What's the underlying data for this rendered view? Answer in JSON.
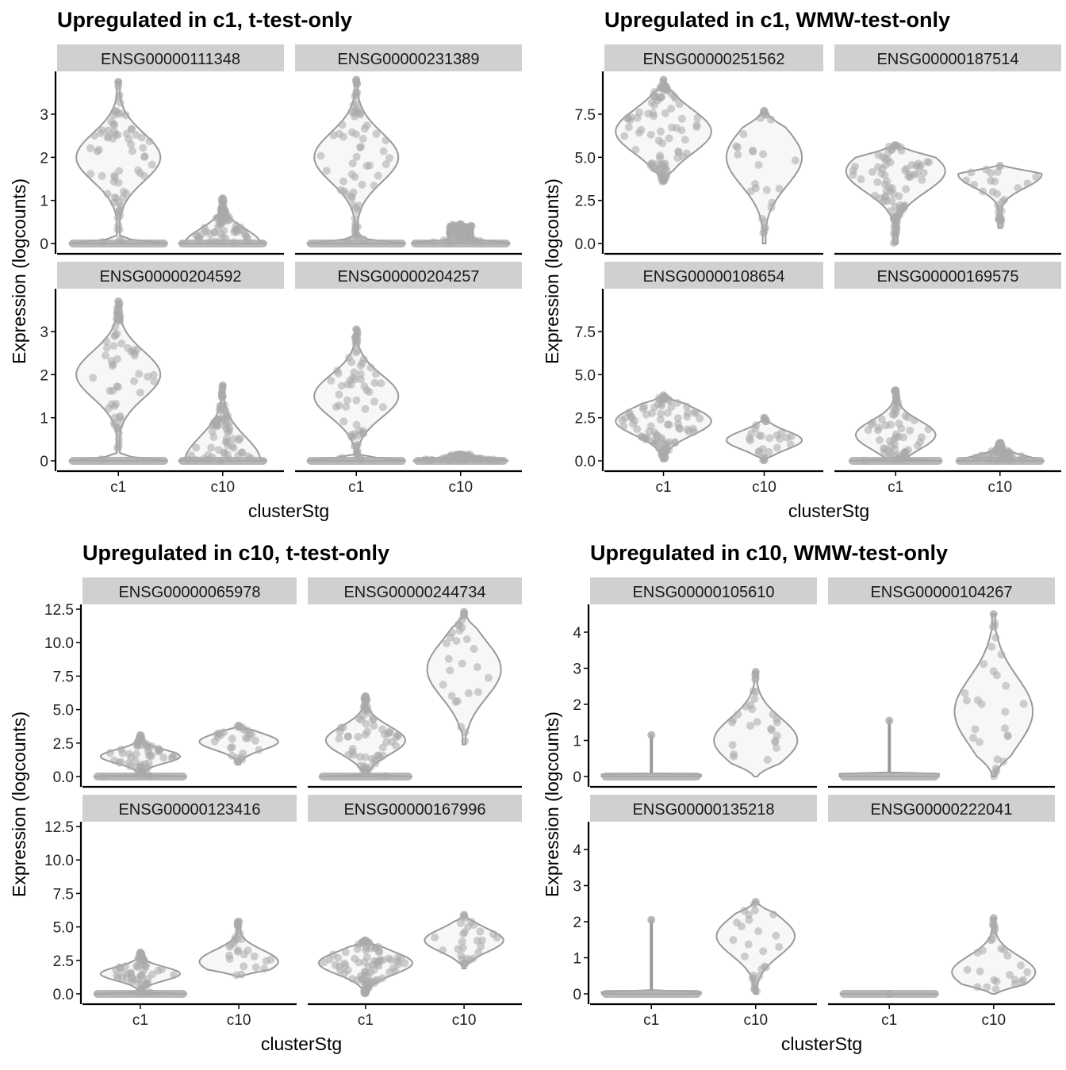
{
  "chart_data": [
    {
      "type": "violin",
      "title": "Upregulated in c1, t-test-only",
      "xlabel": "clusterStg",
      "ylabel": "Expression (logcounts)",
      "categories": [
        "c1",
        "c10"
      ],
      "ylim": [
        -0.15,
        4.0
      ],
      "yticks": [
        "0",
        "1",
        "2",
        "3"
      ],
      "ytick_values": [
        0,
        1,
        2,
        3
      ],
      "facets": [
        {
          "gene": "ENSG00000111348",
          "groups": [
            {
              "cluster": "c1",
              "max": 3.75,
              "zero_heavy": true,
              "mode": 2.0,
              "width": 0.95
            },
            {
              "cluster": "c10",
              "max": 1.05,
              "zero_heavy": true,
              "mode": 0.0,
              "width": 0.85
            }
          ]
        },
        {
          "gene": "ENSG00000231389",
          "groups": [
            {
              "cluster": "c1",
              "max": 3.8,
              "zero_heavy": true,
              "mode": 2.0,
              "width": 0.95
            },
            {
              "cluster": "c10",
              "max": 0.45,
              "zero_heavy": true,
              "mode": 0.0,
              "width": 0.95
            }
          ]
        },
        {
          "gene": "ENSG00000204592",
          "groups": [
            {
              "cluster": "c1",
              "max": 3.7,
              "zero_heavy": true,
              "mode": 2.0,
              "width": 0.95
            },
            {
              "cluster": "c10",
              "max": 1.75,
              "zero_heavy": true,
              "mode": 0.0,
              "width": 0.85
            }
          ]
        },
        {
          "gene": "ENSG00000204257",
          "groups": [
            {
              "cluster": "c1",
              "max": 3.05,
              "zero_heavy": true,
              "mode": 1.5,
              "width": 0.95
            },
            {
              "cluster": "c10",
              "max": 0.15,
              "zero_heavy": true,
              "mode": 0.0,
              "width": 0.9
            }
          ]
        }
      ]
    },
    {
      "type": "violin",
      "title": "Upregulated in c1, WMW-test-only",
      "xlabel": "clusterStg",
      "ylabel": "Expression (logcounts)",
      "categories": [
        "c1",
        "c10"
      ],
      "ylim": [
        -0.35,
        10.0
      ],
      "yticks": [
        "0.0",
        "2.5",
        "5.0",
        "7.5"
      ],
      "ytick_values": [
        0,
        2.5,
        5,
        7.5
      ],
      "facets": [
        {
          "gene": "ENSG00000251562",
          "groups": [
            {
              "cluster": "c1",
              "min": 3.5,
              "max": 9.5,
              "mode": 6.5,
              "width": 0.95
            },
            {
              "cluster": "c10",
              "min": 0.0,
              "max": 7.7,
              "mode": 5.0,
              "width": 0.75
            }
          ]
        },
        {
          "gene": "ENSG00000187514",
          "groups": [
            {
              "cluster": "c1",
              "min": 0.0,
              "max": 5.7,
              "mode": 4.2,
              "width": 0.95
            },
            {
              "cluster": "c10",
              "min": 0.9,
              "max": 4.5,
              "mode": 4.0,
              "width": 0.8
            }
          ]
        },
        {
          "gene": "ENSG00000108654",
          "groups": [
            {
              "cluster": "c1",
              "min": 0.0,
              "max": 3.8,
              "mode": 2.3,
              "width": 0.95
            },
            {
              "cluster": "c10",
              "min": 0.0,
              "max": 2.5,
              "mode": 1.2,
              "width": 0.75
            }
          ]
        },
        {
          "gene": "ENSG00000169575",
          "groups": [
            {
              "cluster": "c1",
              "max": 4.1,
              "zero_heavy": true,
              "mode": 1.5,
              "width": 0.9
            },
            {
              "cluster": "c10",
              "max": 1.05,
              "zero_heavy": true,
              "mode": 0.0,
              "width": 0.85
            }
          ]
        }
      ]
    },
    {
      "type": "violin",
      "title": "Upregulated in c10, t-test-only",
      "xlabel": "clusterStg",
      "ylabel": "Expression (logcounts)",
      "categories": [
        "c1",
        "c10"
      ],
      "ylim": [
        -0.6,
        12.8
      ],
      "yticks": [
        "0.0",
        "2.5",
        "5.0",
        "7.5",
        "10.0",
        "12.5"
      ],
      "ytick_values": [
        0,
        2.5,
        5,
        7.5,
        10,
        12.5
      ],
      "facets": [
        {
          "gene": "ENSG00000065978",
          "groups": [
            {
              "cluster": "c1",
              "max": 3.1,
              "zero_heavy": true,
              "mode": 1.5,
              "width": 0.95
            },
            {
              "cluster": "c10",
              "min": 0.9,
              "max": 3.8,
              "mode": 2.6,
              "width": 0.8
            }
          ]
        },
        {
          "gene": "ENSG00000244734",
          "groups": [
            {
              "cluster": "c1",
              "max": 6.0,
              "zero_heavy": true,
              "mode": 2.7,
              "width": 0.95
            },
            {
              "cluster": "c10",
              "min": 2.4,
              "max": 12.3,
              "mode": 8.0,
              "width": 0.75
            }
          ]
        },
        {
          "gene": "ENSG00000123416",
          "groups": [
            {
              "cluster": "c1",
              "max": 3.1,
              "zero_heavy": true,
              "mode": 1.5,
              "width": 0.95
            },
            {
              "cluster": "c10",
              "min": 1.3,
              "max": 5.4,
              "mode": 2.4,
              "width": 0.8
            }
          ]
        },
        {
          "gene": "ENSG00000167996",
          "groups": [
            {
              "cluster": "c1",
              "min": 0.0,
              "max": 4.0,
              "mode": 2.3,
              "width": 0.95
            },
            {
              "cluster": "c10",
              "min": 1.9,
              "max": 5.9,
              "mode": 4.0,
              "width": 0.8
            }
          ]
        }
      ]
    },
    {
      "type": "violin",
      "title": "Upregulated in c10, WMW-test-only",
      "xlabel": "clusterStg",
      "ylabel": "Expression (logcounts)",
      "categories": [
        "c1",
        "c10"
      ],
      "ylim": [
        -0.2,
        4.7
      ],
      "yticks": [
        "0",
        "1",
        "2",
        "3",
        "4"
      ],
      "ytick_values": [
        0,
        1,
        2,
        3,
        4
      ],
      "facets": [
        {
          "gene": "ENSG00000105610",
          "groups": [
            {
              "cluster": "c1",
              "max": 1.15,
              "zero_only": true,
              "width": 0.95
            },
            {
              "cluster": "c10",
              "min": 0.0,
              "max": 2.9,
              "mode": 1.0,
              "width": 0.8
            }
          ]
        },
        {
          "gene": "ENSG00000104267",
          "groups": [
            {
              "cluster": "c1",
              "max": 1.55,
              "zero_only": true,
              "width": 0.95
            },
            {
              "cluster": "c10",
              "min": 0.0,
              "max": 4.5,
              "mode": 1.8,
              "width": 0.75
            }
          ]
        },
        {
          "gene": "ENSG00000135218",
          "groups": [
            {
              "cluster": "c1",
              "max": 2.05,
              "zero_only": true,
              "width": 0.95
            },
            {
              "cluster": "c10",
              "min": 0.0,
              "max": 2.55,
              "mode": 1.6,
              "width": 0.75
            }
          ]
        },
        {
          "gene": "ENSG00000222041",
          "groups": [
            {
              "cluster": "c1",
              "max": 0.0,
              "zero_only": true,
              "width": 0.95
            },
            {
              "cluster": "c10",
              "min": 0.0,
              "max": 2.1,
              "mode": 0.6,
              "width": 0.8
            }
          ]
        }
      ]
    }
  ],
  "colors": {
    "violin_outline": "#999999",
    "violin_fill": "#f7f7f7",
    "points": "#aaaaaa",
    "strip_background": "#d0d0d0",
    "axis": "#000000"
  }
}
